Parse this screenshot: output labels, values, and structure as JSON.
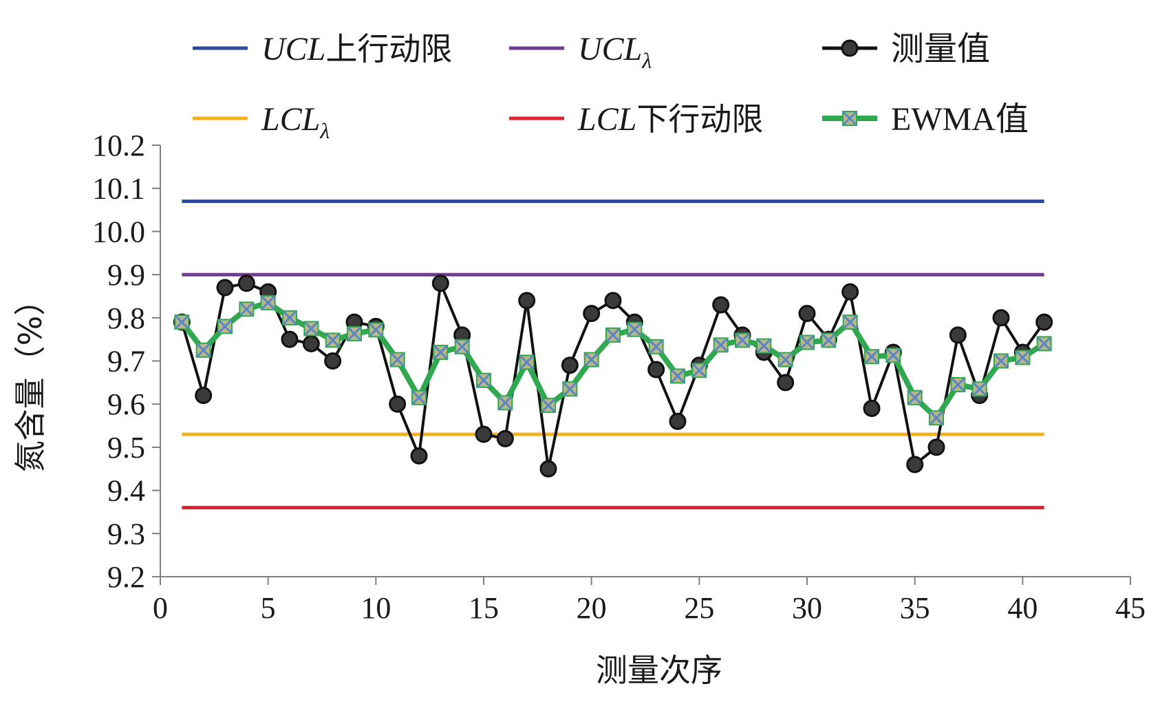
{
  "chart_data": {
    "type": "line",
    "xlabel": "测量次序",
    "ylabel": "氮含量（%）",
    "xlim": [
      0,
      45
    ],
    "ylim": [
      9.2,
      10.2
    ],
    "x_ticks": [
      "0",
      "5",
      "10",
      "15",
      "20",
      "25",
      "30",
      "35",
      "40",
      "45"
    ],
    "y_ticks": [
      "9.2",
      "9.3",
      "9.4",
      "9.5",
      "9.6",
      "9.7",
      "9.8",
      "9.9",
      "10.0",
      "10.1",
      "10.2"
    ],
    "grid": false,
    "legend_position": "top",
    "x": [
      1,
      2,
      3,
      4,
      5,
      6,
      7,
      8,
      9,
      10,
      11,
      12,
      13,
      14,
      15,
      16,
      17,
      18,
      19,
      20,
      21,
      22,
      23,
      24,
      25,
      26,
      27,
      28,
      29,
      30,
      31,
      32,
      33,
      34,
      35,
      36,
      37,
      38,
      39,
      40,
      41
    ],
    "series": [
      {
        "name": "UCL上行动限",
        "legend_main": "UCL",
        "legend_suffix": "上行动限",
        "kind": "hline",
        "value": 10.07,
        "x_range": [
          1,
          41
        ],
        "color": "#2e4c9c"
      },
      {
        "name": "UCLλ",
        "legend_main": "UCL",
        "legend_sub": "λ",
        "kind": "hline",
        "value": 9.9,
        "x_range": [
          1,
          41
        ],
        "color": "#6f3b8f"
      },
      {
        "name": "测量值",
        "legend_main": "测量值",
        "kind": "line-marker",
        "marker": "circle",
        "color": "#111111",
        "values": [
          9.79,
          9.62,
          9.87,
          9.88,
          9.86,
          9.75,
          9.74,
          9.7,
          9.79,
          9.78,
          9.6,
          9.48,
          9.88,
          9.76,
          9.53,
          9.52,
          9.84,
          9.45,
          9.69,
          9.81,
          9.84,
          9.79,
          9.68,
          9.56,
          9.69,
          9.83,
          9.76,
          9.72,
          9.65,
          9.81,
          9.75,
          9.86,
          9.59,
          9.72,
          9.46,
          9.5,
          9.76,
          9.62,
          9.8,
          9.72,
          9.79
        ]
      },
      {
        "name": "LCLλ",
        "legend_main": "LCL",
        "legend_sub": "λ",
        "kind": "hline",
        "value": 9.53,
        "x_range": [
          1,
          41
        ],
        "color": "#f2b21b"
      },
      {
        "name": "LCL下行动限",
        "legend_main": "LCL",
        "legend_suffix": "下行动限",
        "kind": "hline",
        "value": 9.36,
        "x_range": [
          1,
          41
        ],
        "color": "#e0202a"
      },
      {
        "name": "EWMA值",
        "legend_main": "EWMA值",
        "kind": "line-marker",
        "marker": "x-square",
        "color": "#2fa84f",
        "marker_fill": "#b7b78a",
        "marker_cross": "#5b86c5",
        "values": [
          9.79,
          9.725,
          9.78,
          9.82,
          9.835,
          9.8,
          9.775,
          9.748,
          9.763,
          9.772,
          9.703,
          9.615,
          9.72,
          9.733,
          9.655,
          9.603,
          9.697,
          9.597,
          9.635,
          9.703,
          9.76,
          9.773,
          9.733,
          9.665,
          9.678,
          9.737,
          9.748,
          9.735,
          9.703,
          9.743,
          9.748,
          9.79,
          9.71,
          9.713,
          9.615,
          9.568,
          9.645,
          9.635,
          9.7,
          9.708,
          9.74
        ]
      }
    ]
  }
}
